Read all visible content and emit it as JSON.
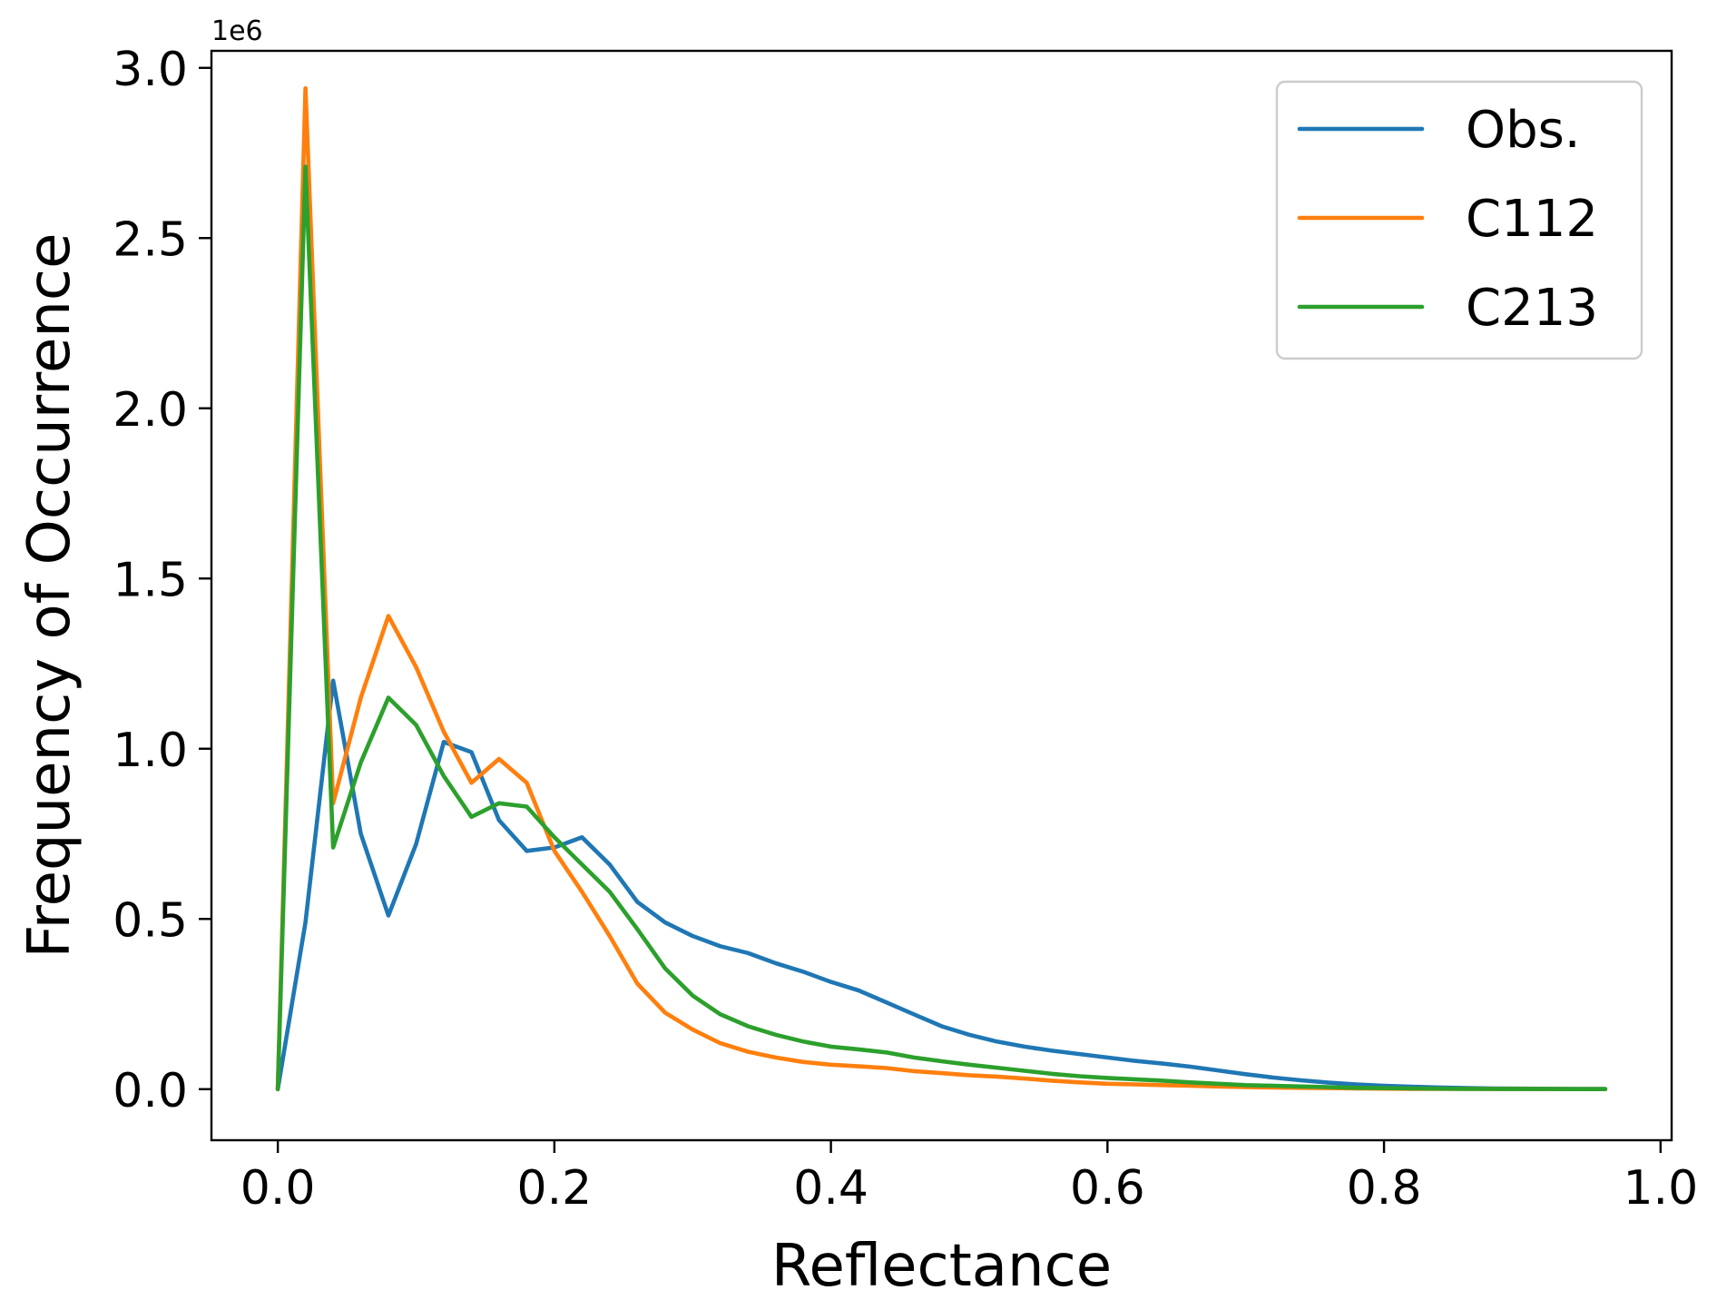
{
  "chart_data": {
    "type": "line",
    "xlabel": "Reflectance",
    "ylabel": "Frequency of Occurrence",
    "y_offset_label": "1e6",
    "xlim": [
      -0.048,
      1.008
    ],
    "ylim": [
      -0.15,
      3.05
    ],
    "x_ticks": [
      0.0,
      0.2,
      0.4,
      0.6,
      0.8,
      1.0
    ],
    "x_tick_labels": [
      "0.0",
      "0.2",
      "0.4",
      "0.6",
      "0.8",
      "1.0"
    ],
    "y_ticks": [
      0.0,
      0.5,
      1.0,
      1.5,
      2.0,
      2.5,
      3.0
    ],
    "y_tick_labels": [
      "0.0",
      "0.5",
      "1.0",
      "1.5",
      "2.0",
      "2.5",
      "3.0"
    ],
    "grid": false,
    "legend_position": "top-right",
    "x": [
      0.0,
      0.02,
      0.04,
      0.06,
      0.08,
      0.1,
      0.12,
      0.14,
      0.16,
      0.18,
      0.2,
      0.22,
      0.24,
      0.26,
      0.28,
      0.3,
      0.32,
      0.34,
      0.36,
      0.38,
      0.4,
      0.42,
      0.44,
      0.46,
      0.48,
      0.5,
      0.52,
      0.54,
      0.56,
      0.58,
      0.6,
      0.62,
      0.64,
      0.66,
      0.68,
      0.7,
      0.72,
      0.74,
      0.76,
      0.78,
      0.8,
      0.82,
      0.84,
      0.86,
      0.88,
      0.9,
      0.92,
      0.94,
      0.96
    ],
    "series": [
      {
        "name": "Obs.",
        "color": "#1f77b4",
        "values": [
          0.0,
          0.49,
          1.2,
          0.75,
          0.51,
          0.72,
          1.02,
          0.99,
          0.79,
          0.7,
          0.71,
          0.74,
          0.66,
          0.55,
          0.49,
          0.45,
          0.42,
          0.4,
          0.37,
          0.345,
          0.315,
          0.29,
          0.255,
          0.22,
          0.185,
          0.16,
          0.14,
          0.125,
          0.113,
          0.103,
          0.093,
          0.083,
          0.075,
          0.066,
          0.055,
          0.044,
          0.034,
          0.026,
          0.019,
          0.014,
          0.01,
          0.007,
          0.005,
          0.003,
          0.002,
          0.0015,
          0.001,
          0.0005,
          0.0003
        ]
      },
      {
        "name": "C112",
        "color": "#ff7f0e",
        "values": [
          0.0,
          2.94,
          0.84,
          1.15,
          1.39,
          1.24,
          1.05,
          0.9,
          0.97,
          0.9,
          0.7,
          0.58,
          0.45,
          0.31,
          0.225,
          0.175,
          0.135,
          0.11,
          0.093,
          0.08,
          0.072,
          0.067,
          0.062,
          0.053,
          0.047,
          0.041,
          0.037,
          0.031,
          0.025,
          0.02,
          0.016,
          0.014,
          0.012,
          0.01,
          0.008,
          0.006,
          0.005,
          0.004,
          0.003,
          0.002,
          0.0015,
          0.001,
          0.0008,
          0.0006,
          0.0004,
          0.0003,
          0.0002,
          0.0001,
          0.0001
        ]
      },
      {
        "name": "C213",
        "color": "#2ca02c",
        "values": [
          0.0,
          2.71,
          0.71,
          0.96,
          1.15,
          1.07,
          0.92,
          0.8,
          0.84,
          0.83,
          0.74,
          0.66,
          0.58,
          0.47,
          0.355,
          0.275,
          0.22,
          0.185,
          0.16,
          0.14,
          0.125,
          0.117,
          0.108,
          0.093,
          0.082,
          0.072,
          0.063,
          0.054,
          0.045,
          0.038,
          0.033,
          0.029,
          0.025,
          0.02,
          0.016,
          0.012,
          0.01,
          0.008,
          0.006,
          0.004,
          0.003,
          0.002,
          0.0015,
          0.001,
          0.0007,
          0.0005,
          0.0003,
          0.0002,
          0.0001
        ]
      }
    ]
  }
}
